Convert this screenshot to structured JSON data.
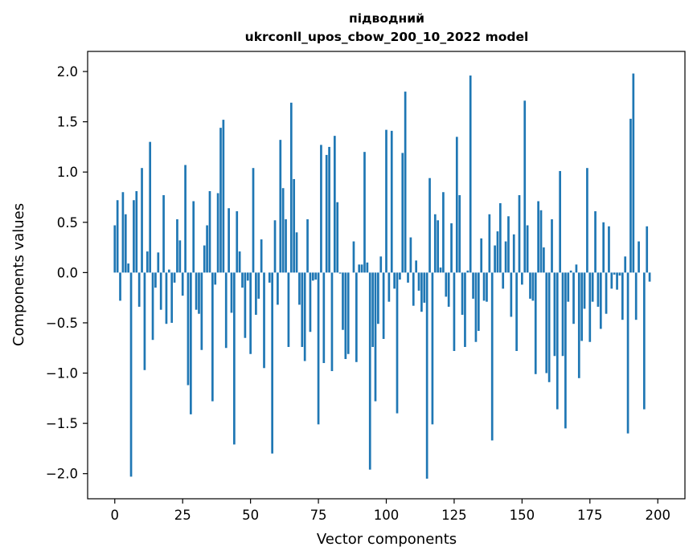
{
  "chart_data": {
    "type": "bar",
    "title": [
      "підводний",
      "ukrconll_upos_cbow_200_10_2022 model"
    ],
    "xlabel": "Vector components",
    "ylabel": "Components values",
    "xlim": [
      -10,
      210
    ],
    "ylim": [
      -2.25,
      2.2
    ],
    "xticks": [
      0,
      25,
      50,
      75,
      100,
      125,
      150,
      175,
      200
    ],
    "yticks": [
      2.0,
      1.5,
      1.0,
      0.5,
      0.0,
      -0.5,
      -1.0,
      -1.5,
      -2.0
    ],
    "ytick_labels": [
      "2.0",
      "1.5",
      "1.0",
      "0.5",
      "0.0",
      "−0.5",
      "−1.0",
      "−1.5",
      "−2.0"
    ],
    "bar_color": "#1f77b4",
    "values": [
      0.47,
      0.72,
      -0.28,
      0.8,
      0.58,
      0.09,
      -2.03,
      0.72,
      0.81,
      -0.34,
      1.04,
      -0.97,
      0.21,
      1.3,
      -0.67,
      -0.15,
      0.2,
      -0.37,
      0.77,
      -0.51,
      0.03,
      -0.5,
      -0.1,
      0.53,
      0.32,
      -0.23,
      1.07,
      -1.12,
      -1.41,
      0.71,
      -0.37,
      -0.41,
      -0.77,
      0.27,
      0.47,
      0.81,
      -1.28,
      -0.12,
      0.79,
      1.44,
      1.52,
      -0.75,
      0.64,
      -0.4,
      -1.71,
      0.61,
      0.21,
      -0.15,
      -0.65,
      -0.08,
      -0.81,
      1.04,
      -0.42,
      -0.26,
      0.33,
      -0.95,
      0.0,
      -0.1,
      -1.8,
      0.52,
      -0.32,
      1.32,
      0.84,
      0.53,
      -0.74,
      1.69,
      0.93,
      0.4,
      -0.32,
      -0.74,
      -0.88,
      0.53,
      -0.59,
      -0.08,
      -0.07,
      -1.51,
      1.27,
      -0.9,
      1.17,
      1.25,
      -0.98,
      1.36,
      0.7,
      -0.01,
      -0.57,
      -0.86,
      -0.81,
      0.0,
      0.31,
      -0.89,
      0.08,
      0.08,
      1.2,
      0.1,
      -1.96,
      -0.74,
      -1.28,
      -0.51,
      0.16,
      -0.66,
      1.42,
      -0.29,
      1.41,
      -0.16,
      -1.4,
      -0.07,
      1.19,
      1.8,
      -0.1,
      0.35,
      -0.33,
      0.12,
      -0.18,
      -0.39,
      -0.3,
      -2.05,
      0.94,
      -1.51,
      0.58,
      0.52,
      0.05,
      0.8,
      -0.24,
      -0.34,
      0.49,
      -0.78,
      1.35,
      0.77,
      -0.42,
      -0.74,
      0.02,
      1.96,
      -0.26,
      -0.69,
      -0.58,
      0.34,
      -0.28,
      -0.29,
      0.58,
      -1.67,
      0.27,
      0.41,
      0.69,
      -0.16,
      0.31,
      0.56,
      -0.44,
      0.38,
      -0.78,
      0.77,
      -0.12,
      1.71,
      0.47,
      -0.26,
      -0.28,
      -1.01,
      0.71,
      0.62,
      0.25,
      -1.0,
      -1.09,
      0.53,
      -0.83,
      -1.36,
      1.01,
      -0.83,
      -1.55,
      -0.29,
      0.02,
      -0.51,
      0.08,
      -1.05,
      -0.68,
      -0.36,
      1.04,
      -0.69,
      -0.29,
      0.61,
      -0.34,
      -0.56,
      0.5,
      -0.41,
      0.46,
      -0.16,
      -0.02,
      -0.17,
      -0.03,
      -0.47,
      0.16,
      -1.6,
      1.53,
      1.98,
      -0.47,
      0.31,
      0.0,
      -1.36,
      0.46,
      -0.09
    ]
  }
}
